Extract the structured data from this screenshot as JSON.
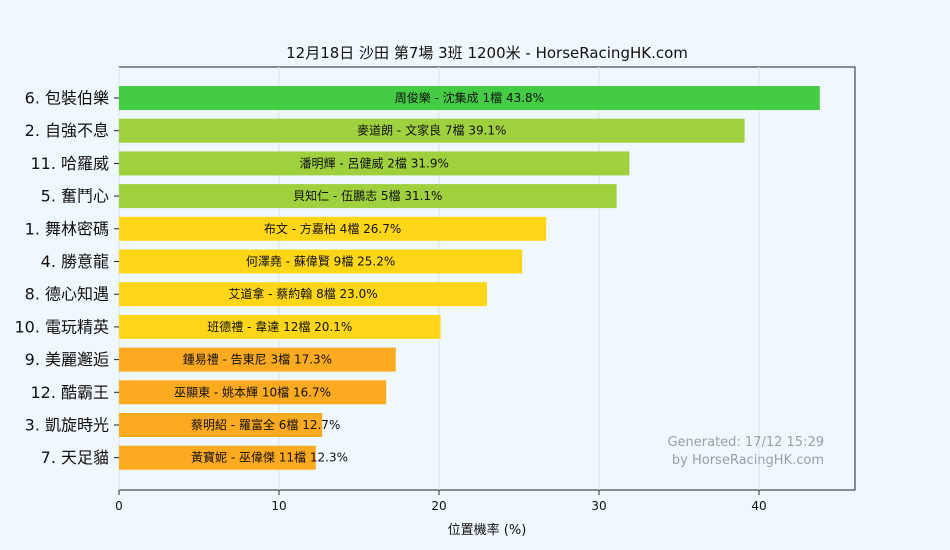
{
  "chart_data": {
    "type": "bar",
    "orientation": "horizontal",
    "title": "12月18日  沙田  第7場  3班  1200米 - HorseRacingHK.com",
    "xlabel": "位置機率 (%)",
    "ylabel": "",
    "xlim": [
      0,
      46
    ],
    "xticks": [
      "0",
      "10",
      "20",
      "30",
      "40"
    ],
    "grid": true,
    "categories": [
      "6. 包裝伯樂",
      "2. 自強不息",
      "11. 哈羅威",
      "5. 奮鬥心",
      "1. 舞林密碼",
      "4. 勝意龍",
      "8. 德心知遇",
      "10. 電玩精英",
      "9. 美麗邂逅",
      "12. 酷霸王",
      "3. 凱旋時光",
      "7. 天足貓"
    ],
    "values": [
      43.8,
      39.1,
      31.9,
      31.1,
      26.7,
      25.2,
      23.0,
      20.1,
      17.3,
      16.7,
      12.7,
      12.3
    ],
    "bar_labels": [
      "周俊樂 - 沈集成 1檔  43.8%",
      "麥道朗 - 文家良 7檔  39.1%",
      "潘明輝 - 呂健威 2檔  31.9%",
      "貝知仁 - 伍鵬志 5檔  31.1%",
      "布文 - 方嘉柏 4檔  26.7%",
      "何澤堯 - 蘇偉賢 9檔  25.2%",
      "艾道拿 - 蔡約翰 8檔  23.0%",
      "班德禮 - 韋達 12檔  20.1%",
      "鍾易禮 - 告東尼 3檔  17.3%",
      "巫顯東 - 姚本輝 10檔  16.7%",
      "蔡明紹 - 羅富全 6檔  12.7%",
      "黃寶妮 - 巫偉傑 11檔  12.3%"
    ],
    "colors": [
      "#44cc44",
      "#9fd13f",
      "#9fd13f",
      "#9fd13f",
      "#fcd617",
      "#fcd617",
      "#fcd617",
      "#fcd617",
      "#fcaa1f",
      "#fcaa1f",
      "#fcaa1f",
      "#fcaa1f"
    ],
    "footer": [
      "Generated: 17/12 15:29",
      "by HorseRacingHK.com"
    ]
  }
}
